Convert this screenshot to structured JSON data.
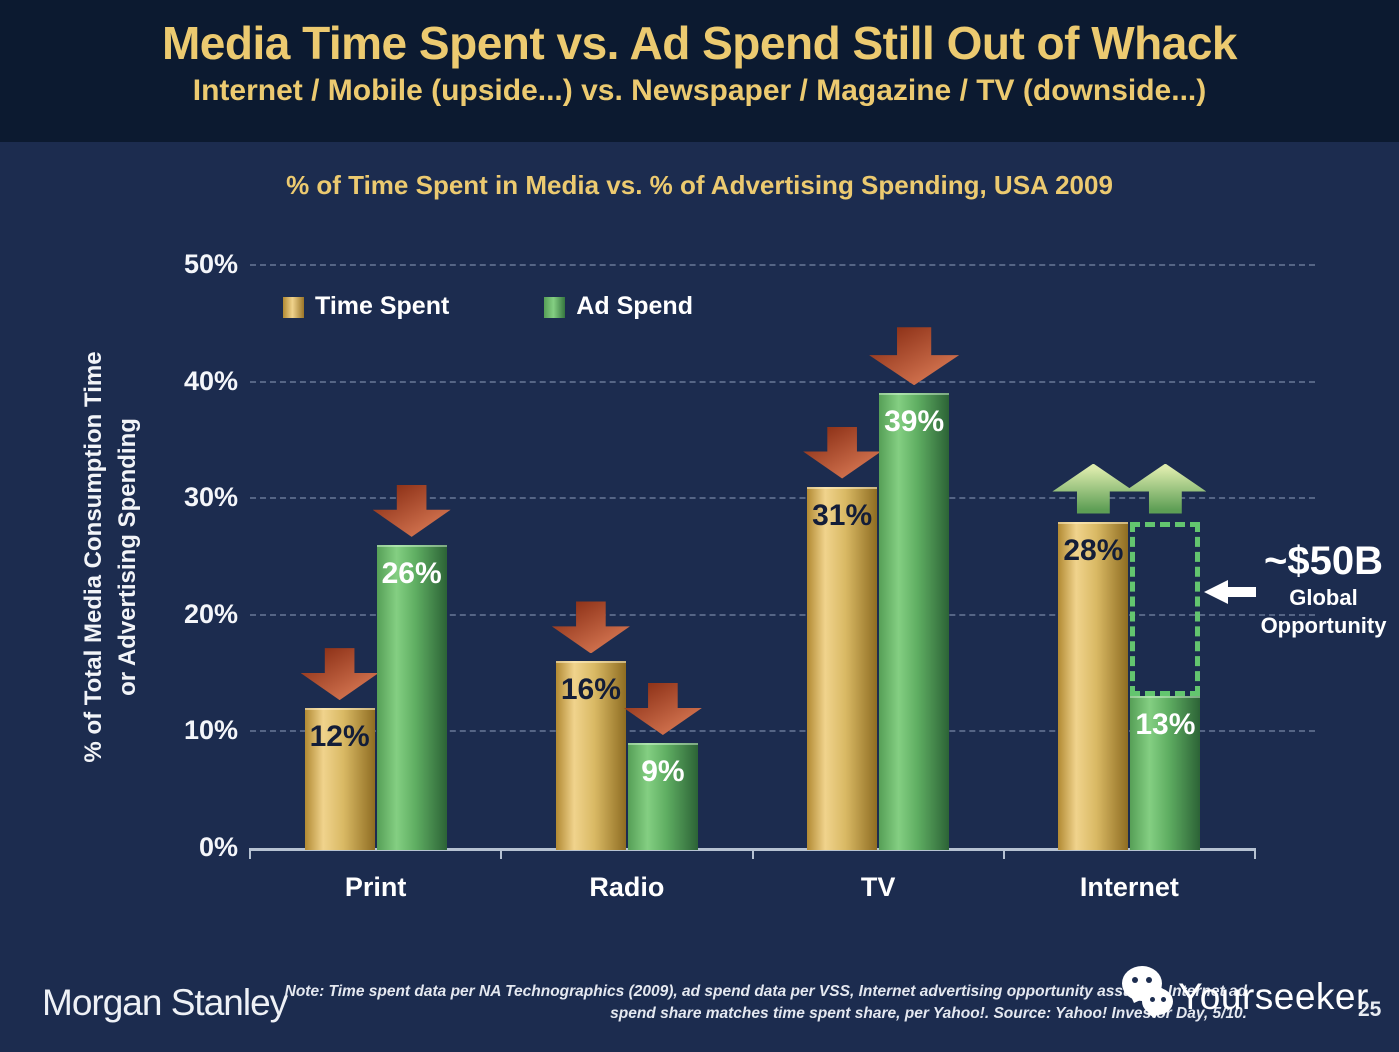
{
  "slide": {
    "title": "Media Time Spent vs. Ad Spend Still Out of Whack",
    "subtitle": "Internet / Mobile (upside...) vs. Newspaper / Magazine / TV (downside...)",
    "page_number": "25"
  },
  "colors": {
    "background": "#1c2c4f",
    "header_background": "#0c1a30",
    "accent_gold": "#ecca70",
    "axis": "#b6c2d2",
    "arrow_red_dark": "#8f3319",
    "arrow_red_light": "#e0805a",
    "arrow_green_light": "#dcebac",
    "arrow_green_dark": "#5d9e55",
    "dashed_box_green": "#63c56f",
    "bar_gold_light": "#f0d38c",
    "bar_gold_dark": "#8f6d22",
    "bar_green_light": "#84cf82",
    "bar_green_dark": "#2c6336"
  },
  "chart_data": {
    "type": "bar",
    "title": "% of Time Spent in Media vs. % of Advertising Spending, USA 2009",
    "categories": [
      "Print",
      "Radio",
      "TV",
      "Internet"
    ],
    "series": [
      {
        "name": "Time Spent",
        "palette": "gold",
        "values": [
          12,
          16,
          31,
          28
        ],
        "labels": [
          "12%",
          "16%",
          "31%",
          "28%"
        ],
        "arrows": [
          "down",
          "down",
          "down",
          "up"
        ]
      },
      {
        "name": "Ad Spend",
        "palette": "green",
        "values": [
          26,
          9,
          39,
          13
        ],
        "labels": [
          "26%",
          "9%",
          "39%",
          "13%"
        ],
        "arrows": [
          "down",
          "down",
          "down-big",
          "up"
        ]
      }
    ],
    "ylabel_line1": "% of Total Media Consumption Time",
    "ylabel_line2": "or Advertising Spending",
    "ylim": [
      0,
      50
    ],
    "yticks": [
      "0%",
      "10%",
      "20%",
      "30%",
      "40%",
      "50%"
    ],
    "grid": "dashed horizontal lines every 10%",
    "legend_position": "top-left inside plot",
    "opportunity_box": {
      "category_index": 3,
      "series_index": 1,
      "from": 28,
      "to": 13
    },
    "annotation": {
      "value": "~$50B",
      "line1": "Global",
      "line2": "Opportunity"
    }
  },
  "footer": {
    "brand": "Morgan Stanley",
    "note_line1": "Note: Time spent data per NA Technographics (2009), ad spend data per VSS, Internet advertising opportunity assumes Internet ad",
    "note_line2": "spend share matches time spent share, per Yahoo!. Source: Yahoo! Investor Day, 5/10.",
    "watermark": "Yourseeker"
  }
}
